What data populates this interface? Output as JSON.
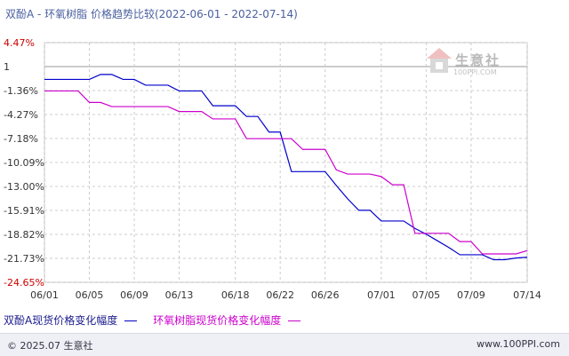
{
  "title": "双酚A - 环氧树脂 价格趋势比较(2022-06-01 - 2022-07-14)",
  "watermark": {
    "text": "生意社",
    "url": "100PPI.COM"
  },
  "legend": [
    "双酚A现货价格变化幅度",
    "环氧树脂现货价格变化幅度"
  ],
  "footer": {
    "copyright": "© 2025.07 生意社",
    "site": "www.100PPI.com"
  },
  "colors": {
    "series1": "#0000cc",
    "series2": "#cc00cc",
    "grid": "#cccccc",
    "zero_line": "#999999"
  },
  "chart_data": {
    "type": "line",
    "title": "双酚A - 环氧树脂 价格趋势比较(2022-06-01 - 2022-07-14)",
    "y_ticks": [
      "4.47%",
      "1",
      "-1.36%",
      "-4.27%",
      "-7.18%",
      "-10.09%",
      "-13.00%",
      "-15.91%",
      "-18.82%",
      "-21.73%",
      "-24.65%"
    ],
    "ylim": [
      -24.65,
      4.47
    ],
    "x_tick_labels": [
      "06/01",
      "06/05",
      "06/09",
      "06/13",
      "06/18",
      "06/22",
      "06/26",
      "07/01",
      "07/05",
      "07/09",
      "07/14"
    ],
    "grid": true,
    "series": [
      {
        "name": "双酚A现货价格变化幅度",
        "color": "#0000cc",
        "points": [
          [
            "06/01",
            0
          ],
          [
            "06/02",
            0
          ],
          [
            "06/03",
            0
          ],
          [
            "06/04",
            0
          ],
          [
            "06/05",
            0
          ],
          [
            "06/06",
            0.6
          ],
          [
            "06/07",
            0.6
          ],
          [
            "06/08",
            0
          ],
          [
            "06/09",
            0
          ],
          [
            "06/10",
            -0.7
          ],
          [
            "06/11",
            -0.7
          ],
          [
            "06/12",
            -0.7
          ],
          [
            "06/13",
            -1.4
          ],
          [
            "06/14",
            -1.4
          ],
          [
            "06/15",
            -1.4
          ],
          [
            "06/16",
            -3.2
          ],
          [
            "06/17",
            -3.2
          ],
          [
            "06/18",
            -3.2
          ],
          [
            "06/19",
            -4.5
          ],
          [
            "06/20",
            -4.5
          ],
          [
            "06/21",
            -6.4
          ],
          [
            "06/22",
            -6.4
          ],
          [
            "06/23",
            -11.2
          ],
          [
            "06/24",
            -11.2
          ],
          [
            "06/25",
            -11.2
          ],
          [
            "06/26",
            -11.2
          ],
          [
            "06/27",
            -12.9
          ],
          [
            "06/28",
            -14.5
          ],
          [
            "06/29",
            -15.9
          ],
          [
            "06/30",
            -15.9
          ],
          [
            "07/01",
            -17.2
          ],
          [
            "07/02",
            -17.2
          ],
          [
            "07/03",
            -17.2
          ],
          [
            "07/04",
            -18.1
          ],
          [
            "07/05",
            -18.8
          ],
          [
            "07/06",
            -19.6
          ],
          [
            "07/07",
            -20.4
          ],
          [
            "07/08",
            -21.3
          ],
          [
            "07/09",
            -21.3
          ],
          [
            "07/10",
            -21.3
          ],
          [
            "07/11",
            -21.9
          ],
          [
            "07/12",
            -21.9
          ],
          [
            "07/13",
            -21.7
          ],
          [
            "07/14",
            -21.6
          ]
        ]
      },
      {
        "name": "环氧树脂现货价格变化幅度",
        "color": "#cc00cc",
        "points": [
          [
            "06/01",
            -1.4
          ],
          [
            "06/02",
            -1.4
          ],
          [
            "06/03",
            -1.4
          ],
          [
            "06/04",
            -1.4
          ],
          [
            "06/05",
            -2.8
          ],
          [
            "06/06",
            -2.8
          ],
          [
            "06/07",
            -3.3
          ],
          [
            "06/08",
            -3.3
          ],
          [
            "06/09",
            -3.3
          ],
          [
            "06/10",
            -3.3
          ],
          [
            "06/11",
            -3.3
          ],
          [
            "06/12",
            -3.3
          ],
          [
            "06/13",
            -3.9
          ],
          [
            "06/14",
            -3.9
          ],
          [
            "06/15",
            -3.9
          ],
          [
            "06/16",
            -4.8
          ],
          [
            "06/17",
            -4.8
          ],
          [
            "06/18",
            -4.8
          ],
          [
            "06/19",
            -7.2
          ],
          [
            "06/20",
            -7.2
          ],
          [
            "06/21",
            -7.2
          ],
          [
            "06/22",
            -7.2
          ],
          [
            "06/23",
            -7.2
          ],
          [
            "06/24",
            -8.5
          ],
          [
            "06/25",
            -8.5
          ],
          [
            "06/26",
            -8.5
          ],
          [
            "06/27",
            -11.0
          ],
          [
            "06/28",
            -11.5
          ],
          [
            "06/29",
            -11.5
          ],
          [
            "06/30",
            -11.5
          ],
          [
            "07/01",
            -11.8
          ],
          [
            "07/02",
            -12.8
          ],
          [
            "07/03",
            -12.8
          ],
          [
            "07/04",
            -18.7
          ],
          [
            "07/05",
            -18.7
          ],
          [
            "07/06",
            -18.7
          ],
          [
            "07/07",
            -18.7
          ],
          [
            "07/08",
            -19.7
          ],
          [
            "07/09",
            -19.7
          ],
          [
            "07/10",
            -21.2
          ],
          [
            "07/11",
            -21.2
          ],
          [
            "07/12",
            -21.2
          ],
          [
            "07/13",
            -21.2
          ],
          [
            "07/14",
            -20.8
          ]
        ]
      }
    ]
  }
}
